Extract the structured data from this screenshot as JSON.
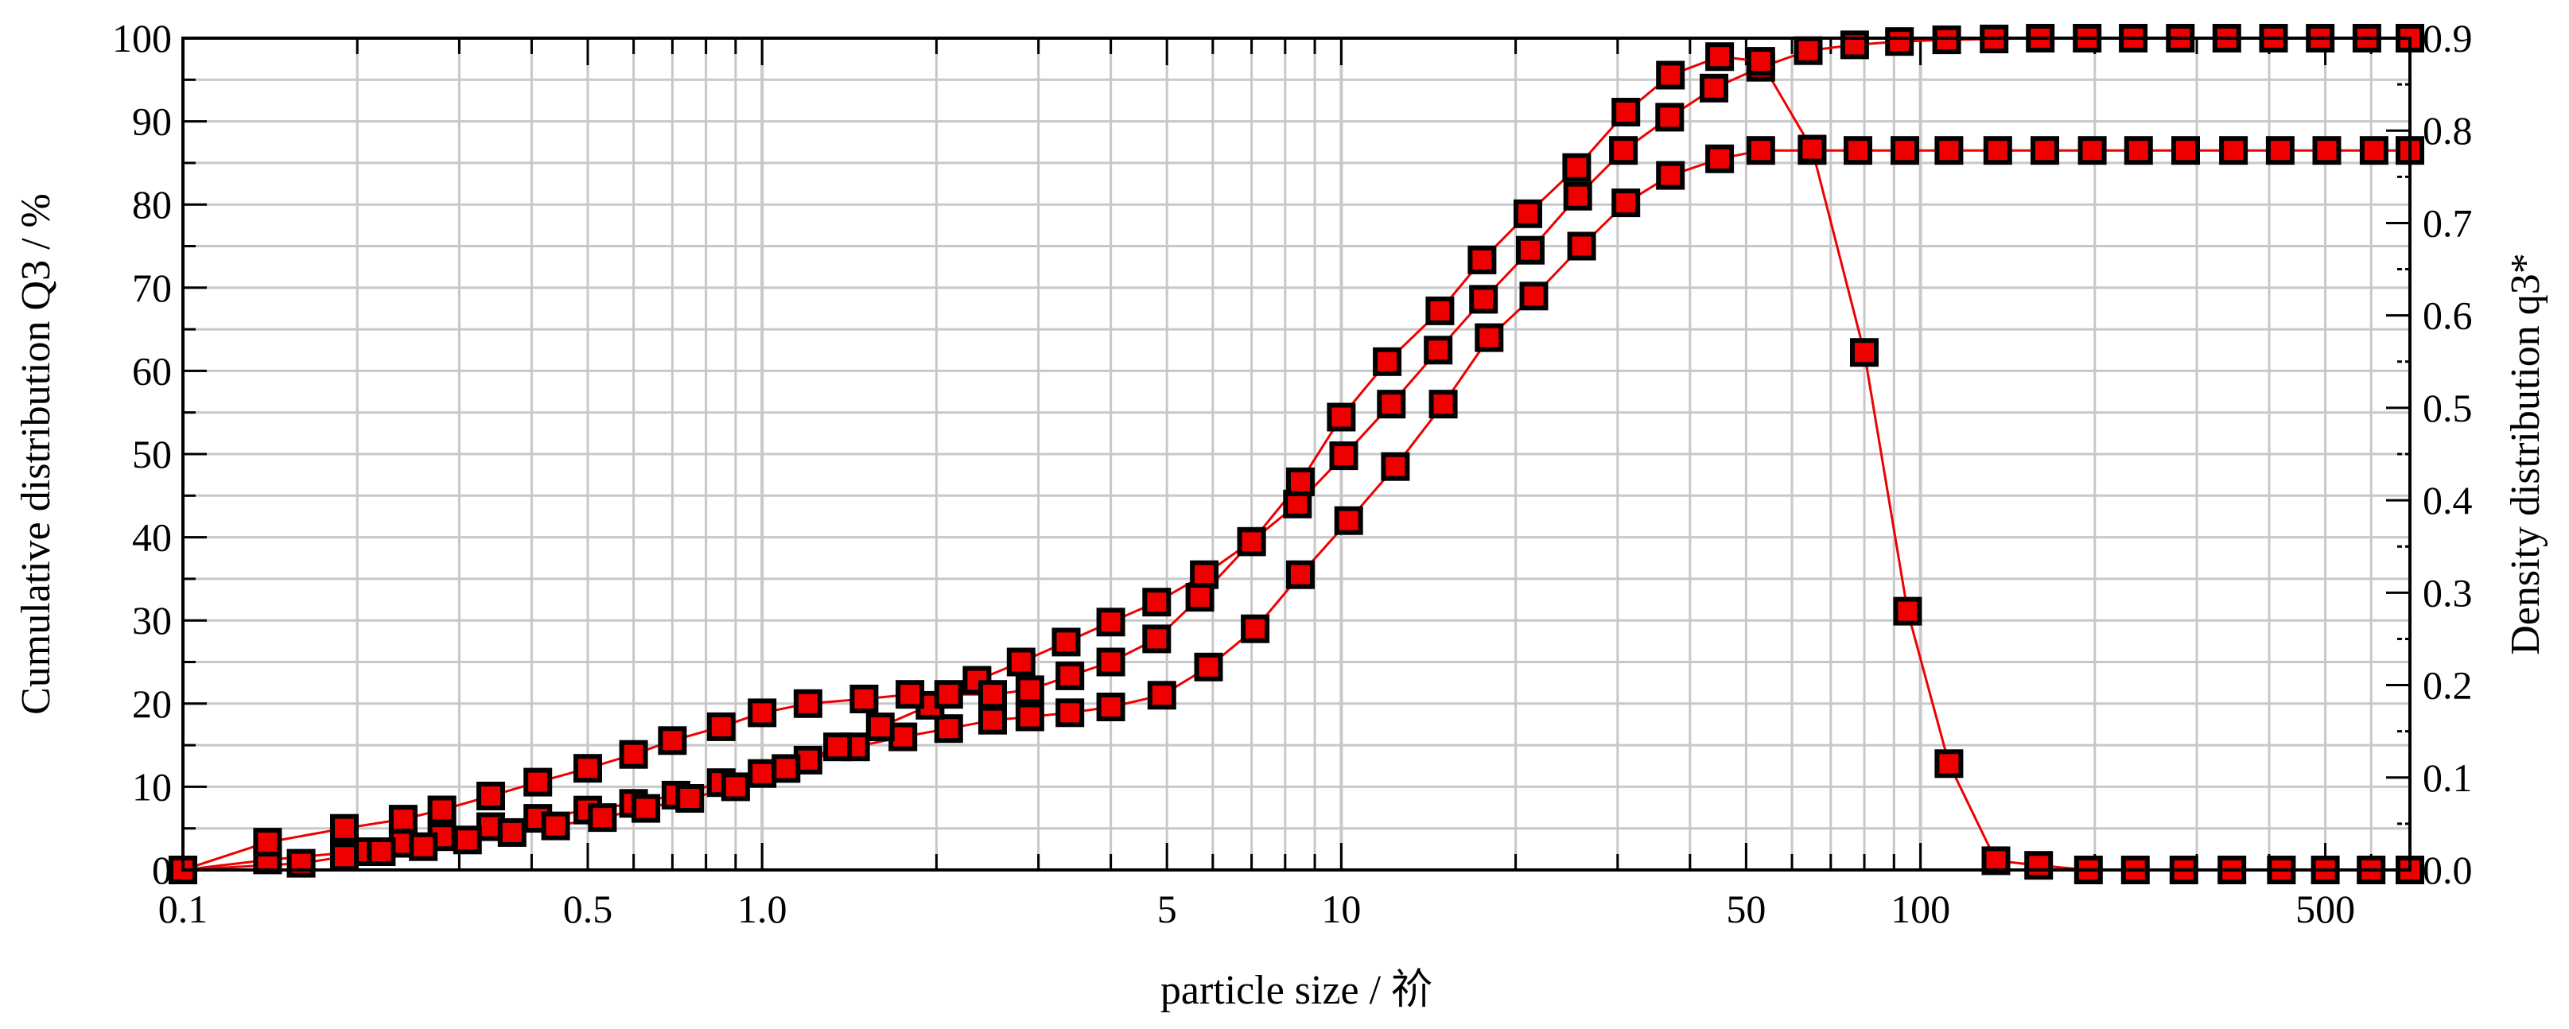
{
  "chart_data": {
    "type": "scatter",
    "title": "",
    "xlabel": "particle size / 祄",
    "ylabel_left": "Cumulative distribution Q3 / %",
    "ylabel_right": "Density distribution q3*",
    "xscale": "log",
    "xlim": [
      0.1,
      700
    ],
    "ylim_left": [
      0,
      100
    ],
    "ylim_right": [
      0,
      0.9
    ],
    "grid": true,
    "legend": "none",
    "x_tick_labels": [
      {
        "value": 0.1,
        "label": "0.1"
      },
      {
        "value": 0.5,
        "label": "0.5"
      },
      {
        "value": 1,
        "label": "1.0"
      },
      {
        "value": 5,
        "label": "5"
      },
      {
        "value": 10,
        "label": "10"
      },
      {
        "value": 50,
        "label": "50"
      },
      {
        "value": 100,
        "label": "100"
      },
      {
        "value": 500,
        "label": "500"
      }
    ],
    "y_left_tick_labels": [
      "0",
      "10",
      "20",
      "30",
      "40",
      "50",
      "60",
      "70",
      "80",
      "90",
      "100"
    ],
    "y_right_tick_labels": [
      "0.0",
      "0.1",
      "0.2",
      "0.3",
      "0.4",
      "0.5",
      "0.6",
      "0.7",
      "0.8",
      "0.9"
    ],
    "series": [
      {
        "axis": "left",
        "marker": "square",
        "x": [
          0.1,
          0.14,
          0.2,
          0.24,
          0.28,
          0.34,
          0.41,
          0.5,
          0.6,
          0.71,
          0.85,
          1.0,
          1.2,
          1.45,
          1.75,
          2.1,
          2.5,
          2.9,
          3.4,
          4.0,
          4.9,
          5.9,
          7.1,
          8.5,
          10.3,
          12.4,
          15.0,
          18.0,
          21.5,
          26.0,
          31.0,
          37.0,
          45.0,
          53.0,
          65.0,
          78.0,
          94.0,
          112.0,
          136.0,
          164.0,
          198.0,
          238.0,
          287.0,
          347.0,
          418.0,
          503.0,
          607.0,
          700.0
        ],
        "values": [
          0,
          1.2,
          2.2,
          3.2,
          4.0,
          5.2,
          6.2,
          7.2,
          8.0,
          9.0,
          10.5,
          11.6,
          13.2,
          14.8,
          16.0,
          17.0,
          18.0,
          18.4,
          18.9,
          19.6,
          21.0,
          24.4,
          29.0,
          35.5,
          42.0,
          48.5,
          56.0,
          64.0,
          69.0,
          75.0,
          80.2,
          83.5,
          85.5,
          86.5,
          86.5,
          86.5,
          86.5,
          86.5,
          86.5,
          86.5,
          86.5,
          86.5,
          86.5,
          86.5,
          86.5,
          86.5,
          86.5,
          86.5
        ]
      },
      {
        "axis": "left",
        "marker": "square",
        "x": [
          0.1,
          0.16,
          0.19,
          0.22,
          0.26,
          0.31,
          0.37,
          0.44,
          0.53,
          0.63,
          0.75,
          0.9,
          1.1,
          1.35,
          1.6,
          1.95,
          2.35,
          2.8,
          3.35,
          4.0,
          4.8,
          5.8,
          7.0,
          8.4,
          10.1,
          12.2,
          14.7,
          17.6,
          21.2,
          25.6,
          30.7,
          36.9,
          44.0,
          53.0,
          64.0,
          77.0,
          92.0,
          111.0,
          134.0,
          161.0,
          194.0,
          233.0,
          281.0,
          338.0,
          407.0,
          490.0,
          590.0,
          700.0
        ],
        "values": [
          0,
          0.8,
          1.6,
          2.2,
          2.8,
          3.6,
          4.5,
          5.3,
          6.3,
          7.4,
          8.6,
          10.0,
          12.2,
          14.8,
          17.2,
          19.8,
          22.8,
          25.0,
          27.4,
          29.8,
          32.2,
          35.5,
          39.5,
          44.0,
          49.8,
          56.0,
          62.5,
          68.6,
          74.5,
          81.0,
          86.5,
          90.5,
          94.0,
          96.5,
          98.5,
          99.2,
          99.6,
          99.8,
          99.9,
          100,
          100,
          100,
          100,
          100,
          100,
          100,
          100,
          100
        ]
      },
      {
        "axis": "right",
        "marker": "square",
        "x": [
          0.1,
          0.14,
          0.19,
          0.24,
          0.28,
          0.34,
          0.41,
          0.5,
          0.6,
          0.7,
          0.85,
          1.0,
          1.2,
          1.5,
          1.8,
          2.1,
          2.5,
          2.9,
          3.4,
          4.0,
          4.8,
          5.7,
          7.0,
          8.5,
          10.0,
          12.0,
          14.8,
          17.5,
          21.0,
          25.5,
          31.0,
          37.0,
          45.0,
          53.0,
          65.0,
          80.0,
          95.0,
          112.0,
          135.0,
          160.0,
          195.0,
          235.0,
          285.0,
          345.0,
          420.0,
          500.0,
          600.0,
          700.0
        ],
        "values": [
          0.0,
          0.03,
          0.045,
          0.055,
          0.065,
          0.08,
          0.095,
          0.11,
          0.125,
          0.14,
          0.155,
          0.17,
          0.18,
          0.185,
          0.19,
          0.19,
          0.19,
          0.195,
          0.21,
          0.225,
          0.25,
          0.295,
          0.355,
          0.42,
          0.49,
          0.55,
          0.605,
          0.66,
          0.71,
          0.76,
          0.82,
          0.86,
          0.88,
          0.875,
          0.78,
          0.56,
          0.28,
          0.115,
          0.01,
          0.005,
          0.0,
          0.0,
          0.0,
          0.0,
          0.0,
          0.0,
          0.0,
          0.0
        ]
      }
    ]
  }
}
